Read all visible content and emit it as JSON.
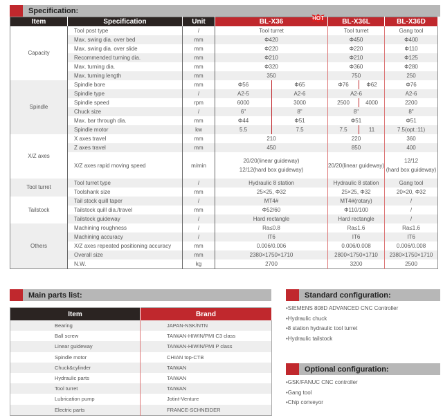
{
  "spec_title": "Specification:",
  "headers": {
    "item": "Item",
    "spec": "Specification",
    "unit": "Unit",
    "m1": "BL-X36",
    "m2": "BL-X36L",
    "m3": "BL-X36D",
    "hot": "HOT"
  },
  "groups": [
    {
      "name": "Capacity",
      "rows": [
        {
          "spec": "Tool post type",
          "unit": "/",
          "a": "Tool turret",
          "b": "Tool turret",
          "c": "Gang tool"
        },
        {
          "spec": "Max. swing dia. over bed",
          "unit": "mm",
          "a": "Φ420",
          "b": "Φ450",
          "c": "Φ400"
        },
        {
          "spec": "Max. swing dia. over slide",
          "unit": "mm",
          "a": "Φ220",
          "b": "Φ220",
          "c": "Φ110"
        },
        {
          "spec": "Recommended turning dia.",
          "unit": "mm",
          "a": "Φ210",
          "b": "Φ210",
          "c": "Φ125"
        },
        {
          "spec": "Max. turning dia.",
          "unit": "mm",
          "a": "Φ320",
          "b": "Φ360",
          "c": "Φ280"
        },
        {
          "spec": "Max. turning length",
          "unit": "mm",
          "a": "350",
          "b": "750",
          "c": "250"
        }
      ]
    },
    {
      "name": "Spindle",
      "rows": [
        {
          "spec": "Spindle bore",
          "unit": "mm",
          "a": [
            "Φ56",
            "Φ65"
          ],
          "b": [
            "Φ76",
            "Φ62"
          ],
          "c": "Φ76"
        },
        {
          "spec": "Spindle type",
          "unit": "/",
          "a": [
            "A2-5",
            "A2-6"
          ],
          "b": "A2-6",
          "c": "A2-6"
        },
        {
          "spec": "Spindle speed",
          "unit": "rpm",
          "a": [
            "6000",
            "3000"
          ],
          "b": [
            "2500",
            "4000"
          ],
          "c": "2200"
        },
        {
          "spec": "Chuck size",
          "unit": "/",
          "a": [
            "6\"",
            "8\""
          ],
          "b": "8\"",
          "c": "8\""
        },
        {
          "spec": "Max. bar through dia.",
          "unit": "mm",
          "a": [
            "Φ44",
            "Φ51"
          ],
          "b": "Φ51",
          "c": "Φ51"
        },
        {
          "spec": "Spindle motor",
          "unit": "kw",
          "a": [
            "5.5",
            "7.5"
          ],
          "b": [
            "7.5",
            "11"
          ],
          "c": "7.5(opt.:11)"
        }
      ]
    },
    {
      "name": "X/Z axes",
      "rows": [
        {
          "spec": "X axes travel",
          "unit": "mm",
          "a": "210",
          "b": "220",
          "c": "360"
        },
        {
          "spec": "Z axes travel",
          "unit": "mm",
          "a": "450",
          "b": "850",
          "c": "400"
        },
        {
          "spec": "X/Z axes rapid moving speed",
          "unit": "m/min",
          "a": "20/20(linear guideway)\n12/12(hard box guideway)",
          "b": "20/20(linear guideway)",
          "c": "12/12\n(hard box guideway)",
          "tall": true
        }
      ]
    },
    {
      "name": "Tool turret",
      "rows": [
        {
          "spec": "Tool turret type",
          "unit": "/",
          "a": "Hydraulic 8 station",
          "b": "Hydraulic 8 station",
          "c": "Gang tool"
        },
        {
          "spec": "Toolshank size",
          "unit": "mm",
          "a": "25×25, Φ32",
          "b": "25×25, Φ32",
          "c": "20×20, Φ32"
        }
      ]
    },
    {
      "name": "Tailstock",
      "rows": [
        {
          "spec": "Tail stock quill taper",
          "unit": "/",
          "a": "MT4#",
          "b": "MT4#(rotary)",
          "c": "/"
        },
        {
          "spec": "Tailstock quill dia./travel",
          "unit": "mm",
          "a": "Φ52/60",
          "b": "Φ110/100",
          "c": "/"
        },
        {
          "spec": "Tailstock guideway",
          "unit": "/",
          "a": "Hard rectangle",
          "b": "Hard rectangle",
          "c": "/"
        }
      ]
    },
    {
      "name": "Others",
      "rows": [
        {
          "spec": "Machining roughness",
          "unit": "/",
          "a": "Ra≤0.8",
          "b": "Ra≤1.6",
          "c": "Ra≤1.6"
        },
        {
          "spec": "Machining accuracy",
          "unit": "/",
          "a": "IT6",
          "b": "IT6",
          "c": "IT6"
        },
        {
          "spec": "X/Z axes repeated positioning accuracy",
          "unit": "mm",
          "a": "0.006/0.006",
          "b": "0.006/0.008",
          "c": "0.006/0.008"
        },
        {
          "spec": "Overall size",
          "unit": "mm",
          "a": "2380×1750×1710",
          "b": "2800×1750×1710",
          "c": "2380×1750×1710"
        },
        {
          "spec": "N.W.",
          "unit": "kg",
          "a": "2700",
          "b": "3200",
          "c": "2500"
        }
      ]
    }
  ],
  "parts": {
    "title": "Main parts list:",
    "item_header": "Item",
    "brand_header": "Brand",
    "rows": [
      {
        "item": "Bearing",
        "brand": "JAPAN-NSK/NTN"
      },
      {
        "item": "Ball screw",
        "brand": "TAIWAN-HIWIN/PMI  C3 class"
      },
      {
        "item": "Linear guideway",
        "brand": "TAIWAN-HIWIN/PMI P class"
      },
      {
        "item": "Spindle motor",
        "brand": "CHIAN top-CTB"
      },
      {
        "item": "Chuck&cylinder",
        "brand": "TAIWAN"
      },
      {
        "item": "Hydraulic parts",
        "brand": "TAIWAN"
      },
      {
        "item": "Tool turret",
        "brand": "TAIWAN"
      },
      {
        "item": "Lubrication pump",
        "brand": "Jotint-Venture"
      },
      {
        "item": "Electric parts",
        "brand": "FRANCE-SCHNEIDER"
      }
    ]
  },
  "standard": {
    "title": "Standard configuration:",
    "items": [
      "•SIEMENS 808D ADVANCED CNC Controller",
      "•Hydraulic chuck",
      "•8 station hydraulic tool turret",
      "•Hydraulic tailstock"
    ]
  },
  "optional": {
    "title": "Optional configuration:",
    "items": [
      "•GSK/FANUC CNC controller",
      "•Gang tool",
      "•Chip conveyor"
    ]
  },
  "colors": {
    "accent": "#c0282d",
    "dark": "#2b2422",
    "bar": "#b7b7b7"
  }
}
